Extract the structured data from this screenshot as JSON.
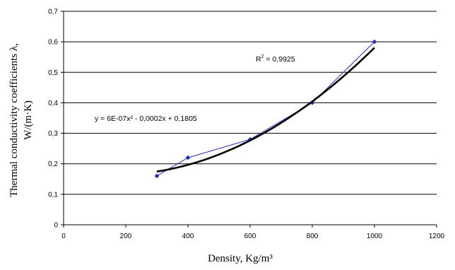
{
  "chart_data": {
    "type": "scatter",
    "xlabel": "Density, Kg/m³",
    "ylabel": "Thermal conductivity coefficients λ, W/(m·K)",
    "ylabel_lines": [
      "Thermal conductivity coefficients λ,",
      "W/(m·K)"
    ],
    "xlim": [
      0,
      1200
    ],
    "ylim": [
      0,
      0.7
    ],
    "x_ticks": [
      0,
      200,
      400,
      600,
      800,
      1000,
      1200
    ],
    "y_ticks": [
      0,
      0.1,
      0.2,
      0.3,
      0.4,
      0.5,
      0.6,
      0.7
    ],
    "x_tick_labels": [
      "0",
      "200",
      "400",
      "600",
      "800",
      "1000",
      "1200"
    ],
    "y_tick_labels": [
      "0",
      "0,1",
      "0,2",
      "0,3",
      "0,4",
      "0,5",
      "0,6",
      "0,7"
    ],
    "grid": "horizontal",
    "series": [
      {
        "x": [
          300,
          400,
          600,
          800,
          1000
        ],
        "y": [
          0.16,
          0.22,
          0.28,
          0.4,
          0.6
        ],
        "color": "#1f2bb5",
        "style": "line-markers"
      }
    ],
    "trendline": {
      "kind": "polynomial-2",
      "coefficients": {
        "a": 6e-07,
        "b": -0.0002,
        "c": 0.1805
      },
      "x_range": [
        300,
        1000
      ],
      "color": "#000000",
      "equation_text": "y = 6E-07x² - 0,0002x + 0,1805",
      "r2_label": "R",
      "r2_value_text": " = 0,9925"
    }
  }
}
